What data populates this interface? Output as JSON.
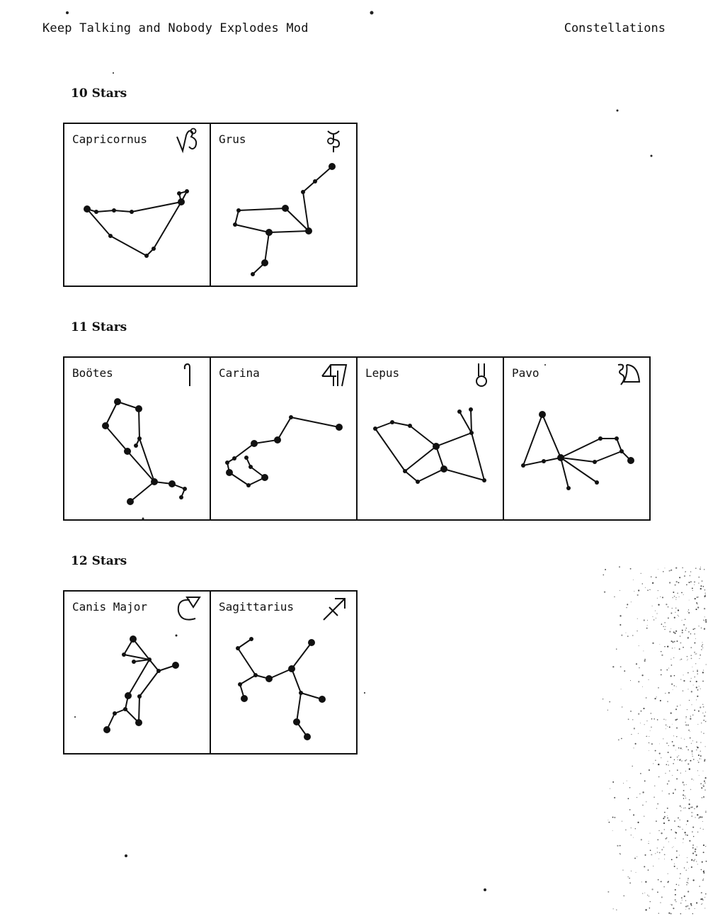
{
  "header": {
    "left": "Keep Talking and Nobody Explodes Mod",
    "right": "Constellations"
  },
  "sections": [
    {
      "title": "10 Stars",
      "constellations": [
        {
          "name": "Capricornus",
          "symbol_icon": "capricorn-glyph-icon",
          "stars": [
            [
              32,
              120,
              5
            ],
            [
              45,
              124,
              3
            ],
            [
              70,
              122,
              3
            ],
            [
              95,
              124,
              3
            ],
            [
              65,
              158,
              3
            ],
            [
              116,
              186,
              3
            ],
            [
              126,
              176,
              3
            ],
            [
              165,
              110,
              5
            ],
            [
              162,
              98,
              3
            ],
            [
              173,
              95,
              3
            ]
          ],
          "lines": [
            [
              0,
              1
            ],
            [
              1,
              2
            ],
            [
              2,
              3
            ],
            [
              3,
              7
            ],
            [
              7,
              9
            ],
            [
              9,
              8
            ],
            [
              8,
              7
            ],
            [
              0,
              4
            ],
            [
              4,
              5
            ],
            [
              5,
              6
            ],
            [
              6,
              7
            ]
          ]
        },
        {
          "name": "Grus",
          "symbol_icon": "grus-glyph-icon",
          "stars": [
            [
              171,
              60,
              5
            ],
            [
              147,
              81,
              3
            ],
            [
              130,
              96,
              3
            ],
            [
              138,
              151,
              5
            ],
            [
              105,
              119,
              5
            ],
            [
              39,
              122,
              3
            ],
            [
              34,
              142,
              3
            ],
            [
              82,
              153,
              5
            ],
            [
              76,
              196,
              5
            ],
            [
              59,
              212,
              3
            ]
          ],
          "lines": [
            [
              0,
              1
            ],
            [
              1,
              2
            ],
            [
              2,
              3
            ],
            [
              3,
              4
            ],
            [
              4,
              5
            ],
            [
              5,
              6
            ],
            [
              6,
              7
            ],
            [
              7,
              3
            ],
            [
              7,
              8
            ],
            [
              8,
              9
            ]
          ]
        }
      ]
    },
    {
      "title": "11 Stars",
      "constellations": [
        {
          "name": "Boötes",
          "symbol_icon": "bootes-glyph-icon",
          "stars": [
            [
              75,
              62,
              5
            ],
            [
              105,
              72,
              5
            ],
            [
              106,
              114,
              3
            ],
            [
              101,
              124,
              3
            ],
            [
              58,
              96,
              5
            ],
            [
              89,
              132,
              5
            ],
            [
              127,
              175,
              5
            ],
            [
              93,
              203,
              5
            ],
            [
              152,
              178,
              5
            ],
            [
              170,
              185,
              3
            ],
            [
              165,
              197,
              3
            ]
          ],
          "lines": [
            [
              0,
              1
            ],
            [
              1,
              2
            ],
            [
              2,
              3
            ],
            [
              2,
              6
            ],
            [
              0,
              4
            ],
            [
              4,
              5
            ],
            [
              5,
              6
            ],
            [
              6,
              7
            ],
            [
              6,
              8
            ],
            [
              8,
              9
            ],
            [
              9,
              10
            ]
          ]
        },
        {
          "name": "Carina",
          "symbol_icon": "carina-glyph-icon",
          "stars": [
            [
              181,
              98,
              5
            ],
            [
              113,
              84,
              3
            ],
            [
              94,
              116,
              5
            ],
            [
              61,
              121,
              5
            ],
            [
              33,
              142,
              3
            ],
            [
              23,
              148,
              3
            ],
            [
              26,
              162,
              5
            ],
            [
              53,
              180,
              3
            ],
            [
              76,
              169,
              5
            ],
            [
              56,
              154,
              3
            ],
            [
              50,
              141,
              3
            ]
          ],
          "lines": [
            [
              0,
              1
            ],
            [
              1,
              2
            ],
            [
              2,
              3
            ],
            [
              3,
              4
            ],
            [
              4,
              5
            ],
            [
              5,
              6
            ],
            [
              6,
              7
            ],
            [
              7,
              8
            ],
            [
              8,
              9
            ],
            [
              9,
              10
            ]
          ]
        },
        {
          "name": "Lepus",
          "symbol_icon": "lepus-glyph-icon",
          "stars": [
            [
              25,
              100,
              3
            ],
            [
              49,
              91,
              3
            ],
            [
              74,
              96,
              3
            ],
            [
              111,
              125,
              5
            ],
            [
              67,
              160,
              3
            ],
            [
              85,
              175,
              3
            ],
            [
              122,
              157,
              5
            ],
            [
              179,
              173,
              3
            ],
            [
              161,
              106,
              3
            ],
            [
              144,
              76,
              3
            ],
            [
              160,
              73,
              3
            ]
          ],
          "lines": [
            [
              0,
              1
            ],
            [
              1,
              2
            ],
            [
              2,
              3
            ],
            [
              0,
              4
            ],
            [
              4,
              3
            ],
            [
              4,
              5
            ],
            [
              5,
              6
            ],
            [
              6,
              3
            ],
            [
              3,
              8
            ],
            [
              8,
              9
            ],
            [
              8,
              10
            ],
            [
              8,
              7
            ],
            [
              6,
              7
            ]
          ]
        },
        {
          "name": "Pavo",
          "symbol_icon": "pavo-glyph-icon",
          "stars": [
            [
              54,
              80,
              5
            ],
            [
              27,
              152,
              3
            ],
            [
              56,
              146,
              3
            ],
            [
              80,
              141,
              5
            ],
            [
              136,
              114,
              3
            ],
            [
              159,
              114,
              3
            ],
            [
              166,
              132,
              3
            ],
            [
              179,
              145,
              5
            ],
            [
              128,
              147,
              3
            ],
            [
              131,
              176,
              3
            ],
            [
              91,
              184,
              3
            ]
          ],
          "lines": [
            [
              0,
              1
            ],
            [
              1,
              2
            ],
            [
              2,
              3
            ],
            [
              0,
              3
            ],
            [
              3,
              4
            ],
            [
              4,
              5
            ],
            [
              5,
              6
            ],
            [
              6,
              7
            ],
            [
              3,
              8
            ],
            [
              8,
              6
            ],
            [
              3,
              9
            ],
            [
              3,
              10
            ]
          ]
        }
      ]
    },
    {
      "title": "12 Stars",
      "constellations": [
        {
          "name": "Canis Major",
          "symbol_icon": "canis-major-glyph-icon",
          "stars": [
            [
              97,
              67,
              5
            ],
            [
              84,
              89,
              3
            ],
            [
              98,
              99,
              3
            ],
            [
              120,
              96,
              3
            ],
            [
              133,
              112,
              3
            ],
            [
              157,
              104,
              5
            ],
            [
              106,
              148,
              3
            ],
            [
              105,
              185,
              5
            ],
            [
              90,
              147,
              5
            ],
            [
              86,
              166,
              3
            ],
            [
              71,
              172,
              3
            ],
            [
              60,
              195,
              5
            ]
          ],
          "lines": [
            [
              0,
              1
            ],
            [
              1,
              3
            ],
            [
              0,
              3
            ],
            [
              2,
              3
            ],
            [
              3,
              4
            ],
            [
              4,
              5
            ],
            [
              4,
              6
            ],
            [
              6,
              7
            ],
            [
              7,
              9
            ],
            [
              3,
              8
            ],
            [
              8,
              9
            ],
            [
              9,
              10
            ],
            [
              10,
              11
            ]
          ]
        },
        {
          "name": "Sagittarius",
          "symbol_icon": "sagittarius-glyph-icon",
          "stars": [
            [
              57,
              67,
              3
            ],
            [
              38,
              80,
              3
            ],
            [
              63,
              118,
              3
            ],
            [
              82,
              123,
              5
            ],
            [
              114,
              109,
              5
            ],
            [
              142,
              72,
              5
            ],
            [
              127,
              143,
              3
            ],
            [
              157,
              152,
              5
            ],
            [
              121,
              184,
              5
            ],
            [
              136,
              205,
              5
            ],
            [
              41,
              131,
              3
            ],
            [
              47,
              151,
              5
            ]
          ],
          "lines": [
            [
              0,
              1
            ],
            [
              1,
              2
            ],
            [
              2,
              3
            ],
            [
              3,
              4
            ],
            [
              4,
              5
            ],
            [
              4,
              6
            ],
            [
              6,
              7
            ],
            [
              6,
              8
            ],
            [
              8,
              9
            ],
            [
              2,
              10
            ],
            [
              10,
              11
            ]
          ]
        }
      ]
    }
  ]
}
